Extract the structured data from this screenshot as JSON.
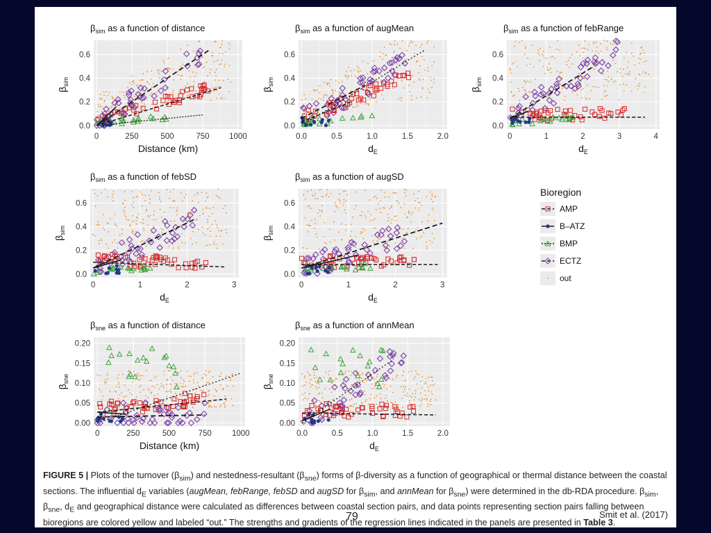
{
  "chart_data": [
    {
      "type": "scatter",
      "title": "βsim as a function of distance",
      "title_main": "β",
      "title_sub": "sim",
      "title_rest": " as a function of distance",
      "xlabel": "Distance (km)",
      "xlabel_main": "Distance (km)",
      "xlabel_sub": "",
      "ylabel": "βsim",
      "ylabel_main": "β",
      "ylabel_sub": "sim",
      "xlim": [
        -20,
        1030
      ],
      "ylim": [
        -0.03,
        0.72
      ],
      "xticks": [
        0,
        250,
        500,
        750,
        1000
      ],
      "xtick_labels": [
        "0",
        "250",
        "500",
        "750",
        "1000"
      ],
      "yticks": [
        0,
        0.2,
        0.4,
        0.6
      ],
      "ytick_labels": [
        "0.0",
        "0.2",
        "0.4",
        "0.6"
      ],
      "fits": [
        {
          "name": "ECTZ",
          "x": [
            0,
            800
          ],
          "y": [
            0,
            0.64
          ]
        },
        {
          "name": "B-ATZ",
          "x": [
            0,
            140
          ],
          "y": [
            0,
            0.16
          ]
        },
        {
          "name": "AMP",
          "x": [
            0,
            880
          ],
          "y": [
            0,
            0.32
          ]
        },
        {
          "name": "BMP",
          "x": [
            0,
            750
          ],
          "y": [
            0,
            0.09
          ]
        }
      ]
    },
    {
      "type": "scatter",
      "title": "βsim as a function of augMean",
      "title_main": "β",
      "title_sub": "sim",
      "title_rest": " as a function of augMean",
      "xlabel": "dE",
      "xlabel_main": "d",
      "xlabel_sub": "E",
      "ylabel": "βsim",
      "ylabel_main": "β",
      "ylabel_sub": "sim",
      "xlim": [
        -0.04,
        2.06
      ],
      "ylim": [
        -0.03,
        0.72
      ],
      "xticks": [
        0,
        0.5,
        1.0,
        1.5,
        2.0
      ],
      "xtick_labels": [
        "0.0",
        "0.5",
        "1.0",
        "1.5",
        "2.0"
      ],
      "yticks": [
        0,
        0.2,
        0.4,
        0.6
      ],
      "ytick_labels": [
        "0.0",
        "0.2",
        "0.4",
        "0.6"
      ],
      "fits": [
        {
          "name": "out",
          "x": [
            0,
            1.75
          ],
          "y": [
            0,
            0.64
          ]
        },
        {
          "name": "ECTZ",
          "x": [
            0,
            0.9
          ],
          "y": [
            0.06,
            0.34
          ]
        },
        {
          "name": "AMP",
          "x": [
            0,
            0.7
          ],
          "y": [
            0.03,
            0.2
          ]
        }
      ]
    },
    {
      "type": "scatter",
      "title": "βsim as a function of febRange",
      "title_main": "β",
      "title_sub": "sim",
      "title_rest": " as a function of febRange",
      "xlabel": "dE",
      "xlabel_main": "d",
      "xlabel_sub": "E",
      "ylabel": "βsim",
      "ylabel_main": "β",
      "ylabel_sub": "sim",
      "xlim": [
        -0.08,
        4.1
      ],
      "ylim": [
        -0.03,
        0.72
      ],
      "xticks": [
        0,
        1,
        2,
        3,
        4
      ],
      "xtick_labels": [
        "0",
        "1",
        "2",
        "3",
        "4"
      ],
      "yticks": [
        0,
        0.2,
        0.4,
        0.6
      ],
      "ytick_labels": [
        "0.0",
        "0.2",
        "0.4",
        "0.6"
      ],
      "fits": [
        {
          "name": "ECTZ",
          "x": [
            0,
            2.3
          ],
          "y": [
            0.06,
            0.5
          ]
        },
        {
          "name": "B-ATZ",
          "x": [
            0,
            0.5
          ],
          "y": [
            0.06,
            0.12
          ]
        },
        {
          "name": "AMP",
          "x": [
            0,
            3.7
          ],
          "y": [
            0.07,
            0.07
          ]
        }
      ]
    },
    {
      "type": "scatter",
      "title": "βsim as a function of febSD",
      "title_main": "β",
      "title_sub": "sim",
      "title_rest": " as a function of febSD",
      "xlabel": "dE",
      "xlabel_main": "d",
      "xlabel_sub": "E",
      "ylabel": "βsim",
      "ylabel_main": "β",
      "ylabel_sub": "sim",
      "xlim": [
        -0.06,
        3.1
      ],
      "ylim": [
        -0.03,
        0.72
      ],
      "xticks": [
        0,
        1,
        2,
        3
      ],
      "xtick_labels": [
        "0",
        "1",
        "2",
        "3"
      ],
      "yticks": [
        0,
        0.2,
        0.4,
        0.6
      ],
      "ytick_labels": [
        "0.0",
        "0.2",
        "0.4",
        "0.6"
      ],
      "fits": [
        {
          "name": "ECTZ",
          "x": [
            0,
            2.15
          ],
          "y": [
            0.05,
            0.46
          ]
        },
        {
          "name": "B-ATZ",
          "x": [
            0,
            0.6
          ],
          "y": [
            0.05,
            0.12
          ]
        },
        {
          "name": "AMP",
          "x": [
            0,
            2.8
          ],
          "y": [
            0.1,
            0.06
          ]
        }
      ]
    },
    {
      "type": "scatter",
      "title": "βsim as a function of augSD",
      "title_main": "β",
      "title_sub": "sim",
      "title_rest": " as a function of augSD",
      "xlabel": "dE",
      "xlabel_main": "d",
      "xlabel_sub": "E",
      "ylabel": "βsim",
      "ylabel_main": "β",
      "ylabel_sub": "sim",
      "xlim": [
        -0.06,
        3.1
      ],
      "ylim": [
        -0.03,
        0.72
      ],
      "xticks": [
        0,
        1,
        2,
        3
      ],
      "xtick_labels": [
        "0",
        "1",
        "2",
        "3"
      ],
      "yticks": [
        0,
        0.2,
        0.4,
        0.6
      ],
      "ytick_labels": [
        "0.0",
        "0.2",
        "0.4",
        "0.6"
      ],
      "fits": [
        {
          "name": "ECTZ",
          "x": [
            0,
            3.0
          ],
          "y": [
            0.05,
            0.43
          ]
        },
        {
          "name": "B-ATZ",
          "x": [
            0,
            1.2
          ],
          "y": [
            0.05,
            0.16
          ]
        },
        {
          "name": "AMP",
          "x": [
            0,
            2.9
          ],
          "y": [
            0.08,
            0.08
          ]
        }
      ]
    },
    {
      "type": "scatter",
      "title": "βsne as a function of distance",
      "title_main": "β",
      "title_sub": "sne",
      "title_rest": " as a function of distance",
      "xlabel": "Distance (km)",
      "xlabel_main": "Distance (km)",
      "xlabel_sub": "",
      "ylabel": "βsne",
      "ylabel_main": "β",
      "ylabel_sub": "sne",
      "xlim": [
        -25,
        1030
      ],
      "ylim": [
        -0.008,
        0.215
      ],
      "xticks": [
        0,
        250,
        500,
        750,
        1000
      ],
      "xtick_labels": [
        "0",
        "250",
        "500",
        "750",
        "1000"
      ],
      "yticks": [
        0,
        0.05,
        0.1,
        0.15,
        0.2
      ],
      "ytick_labels": [
        "0.00",
        "0.05",
        "0.10",
        "0.15",
        "0.20"
      ],
      "fits": [
        {
          "name": "out",
          "x": [
            0,
            1000
          ],
          "y": [
            0.0,
            0.125
          ]
        },
        {
          "name": "AMP",
          "x": [
            0,
            900
          ],
          "y": [
            0.027,
            0.06
          ]
        },
        {
          "name": "B-ATZ",
          "x": [
            0,
            200
          ],
          "y": [
            0.027,
            0.022
          ]
        },
        {
          "name": "ECTZ",
          "x": [
            0,
            750
          ],
          "y": [
            0.015,
            0.02
          ]
        }
      ]
    },
    {
      "type": "scatter",
      "title": "βsne as a function of annMean",
      "title_main": "β",
      "title_sub": "sne",
      "title_rest": " as a function of annMean",
      "xlabel": "dE",
      "xlabel_main": "d",
      "xlabel_sub": "E",
      "ylabel": "βsne",
      "ylabel_main": "β",
      "ylabel_sub": "sne",
      "xlim": [
        -0.05,
        2.1
      ],
      "ylim": [
        -0.008,
        0.215
      ],
      "xticks": [
        0,
        0.5,
        1.0,
        1.5,
        2.0
      ],
      "xtick_labels": [
        "0.0",
        "0.5",
        "1.0",
        "1.5",
        "2.0"
      ],
      "yticks": [
        0,
        0.05,
        0.1,
        0.15,
        0.2
      ],
      "ytick_labels": [
        "0.00",
        "0.05",
        "0.10",
        "0.15",
        "0.20"
      ],
      "fits": [
        {
          "name": "out",
          "x": [
            0,
            1.3
          ],
          "y": [
            0.0,
            0.16
          ]
        },
        {
          "name": "AMP",
          "x": [
            0,
            1.9
          ],
          "y": [
            0.025,
            0.02
          ]
        },
        {
          "name": "B-ATZ",
          "x": [
            0,
            0.4
          ],
          "y": [
            0.005,
            0.035
          ]
        }
      ]
    }
  ],
  "legend": {
    "title": "Bioregion",
    "items": [
      {
        "name": "AMP",
        "color": "#d62728",
        "marker": "square"
      },
      {
        "name": "B–ATZ",
        "color": "#1f3a8a",
        "marker": "circle"
      },
      {
        "name": "BMP",
        "color": "#3aa33a",
        "marker": "triangle"
      },
      {
        "name": "ECTZ",
        "color": "#7b3fa8",
        "marker": "diamond"
      },
      {
        "name": "out",
        "color": "#f08c28",
        "marker": "dot"
      }
    ]
  },
  "caption": {
    "label": "FIGURE 5 |",
    "p1": " Plots of the turnover (β",
    "s1": "sim",
    "p2": ") and nestedness-resultant (β",
    "s2": "sne",
    "p3": ") forms of β-diversity as a function of geographical or thermal distance between the coastal sections. The influential d",
    "s3": "E",
    "p4": " variables (",
    "i1": "augMean, febRange, febSD",
    "p5": " and ",
    "i2": "augSD",
    "p6": " for β",
    "s4": "sim",
    "p7": ", and ",
    "i3": "annMean",
    "p8": " for β",
    "s5": "sne",
    "p9": ") were determined in the db-RDA procedure. β",
    "s6": "sim",
    "p10": ", β",
    "s7": "sne",
    "p11": ", d",
    "s8": "E",
    "p12": " and geographical distance were calculated as differences between coastal section pairs, and data points representing section pairs falling between bioregions are colored yellow and labeled “out.” The strengths and gradients of the regression lines indicated in the panels are presented in ",
    "table_ref": "Table 3",
    "p13": "."
  },
  "page_number": "79",
  "citation": "Smit et al. (2017)"
}
